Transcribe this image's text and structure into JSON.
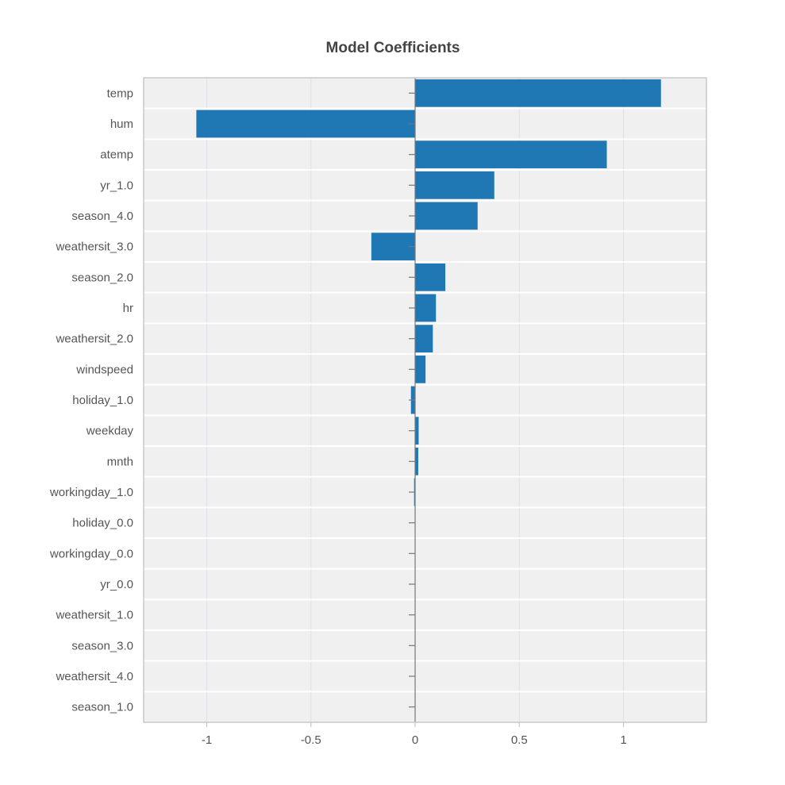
{
  "chart_data": {
    "type": "bar",
    "orientation": "horizontal",
    "title": "Model Coefficients",
    "xlabel": "",
    "ylabel": "",
    "categories": [
      "temp",
      "hum",
      "atemp",
      "yr_1.0",
      "season_4.0",
      "weathersit_3.0",
      "season_2.0",
      "hr",
      "weathersit_2.0",
      "windspeed",
      "holiday_1.0",
      "weekday",
      "mnth",
      "workingday_1.0",
      "holiday_0.0",
      "workingday_0.0",
      "yr_0.0",
      "weathersit_1.0",
      "season_3.0",
      "weathersit_4.0",
      "season_1.0"
    ],
    "values": [
      1.18,
      -1.05,
      0.92,
      0.38,
      0.3,
      -0.21,
      0.145,
      0.1,
      0.085,
      0.05,
      -0.02,
      0.017,
      0.015,
      -0.005,
      0.0,
      0.0,
      0.0,
      0.0,
      0.0,
      0.0,
      0.0
    ],
    "xlim": [
      -1.3,
      1.4
    ],
    "xticks": [
      -1,
      -0.5,
      0,
      0.5,
      1
    ],
    "xtick_labels": [
      "-1",
      "-0.5",
      "0",
      "0.5",
      "1"
    ],
    "grid": true,
    "legend": "none",
    "colors": {
      "bar": "#1f77b4",
      "plot_background": "#f0f0f0",
      "grid": "#dde0e6",
      "zero_line": "#777777",
      "frame": "#c8c8c8"
    }
  }
}
